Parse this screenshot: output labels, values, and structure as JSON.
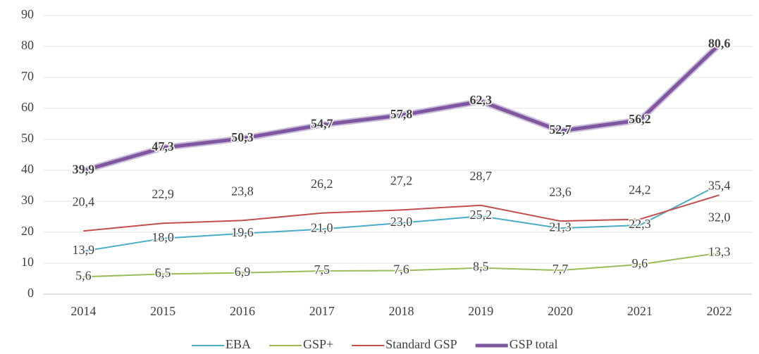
{
  "chart_data": {
    "type": "line",
    "categories": [
      "2014",
      "2015",
      "2016",
      "2017",
      "2018",
      "2019",
      "2020",
      "2021",
      "2022"
    ],
    "series": [
      {
        "name": "EBA",
        "color": "#4bacc6",
        "values": [
          13.9,
          18.0,
          19.6,
          21.0,
          23.0,
          25.2,
          21.3,
          22.3,
          35.4
        ],
        "value_labels": [
          "13,9",
          "18,0",
          "19,6",
          "21,0",
          "23,0",
          "25,2",
          "21,3",
          "22,3",
          "35,4"
        ]
      },
      {
        "name": "GSP+",
        "color": "#9bbb59",
        "values": [
          5.6,
          6.5,
          6.9,
          7.5,
          7.6,
          8.5,
          7.7,
          9.6,
          13.3
        ],
        "value_labels": [
          "5,6",
          "6,5",
          "6,9",
          "7,5",
          "7,6",
          "8,5",
          "7,7",
          "9,6",
          "13,3"
        ]
      },
      {
        "name": "Standard GSP",
        "color": "#c0504d",
        "values": [
          20.4,
          22.9,
          23.8,
          26.2,
          27.2,
          28.7,
          23.6,
          24.2,
          32.0
        ],
        "value_labels": [
          "20,4",
          "22,9",
          "23,8",
          "26,2",
          "27,2",
          "28,7",
          "23,6",
          "24,2",
          "32,0"
        ]
      },
      {
        "name": "GSP total",
        "color": "#7e57a0",
        "values": [
          39.9,
          47.3,
          50.3,
          54.7,
          57.8,
          62.3,
          52.7,
          56.2,
          80.6
        ],
        "value_labels": [
          "39,9",
          "47,3",
          "50,3",
          "54,7",
          "57,8",
          "62,3",
          "52,7",
          "56,2",
          "80,6"
        ]
      }
    ],
    "ylim": [
      0,
      90
    ],
    "yticks": [
      0,
      10,
      20,
      30,
      40,
      50,
      60,
      70,
      80,
      90
    ],
    "grid": true,
    "legend": "bottom"
  }
}
